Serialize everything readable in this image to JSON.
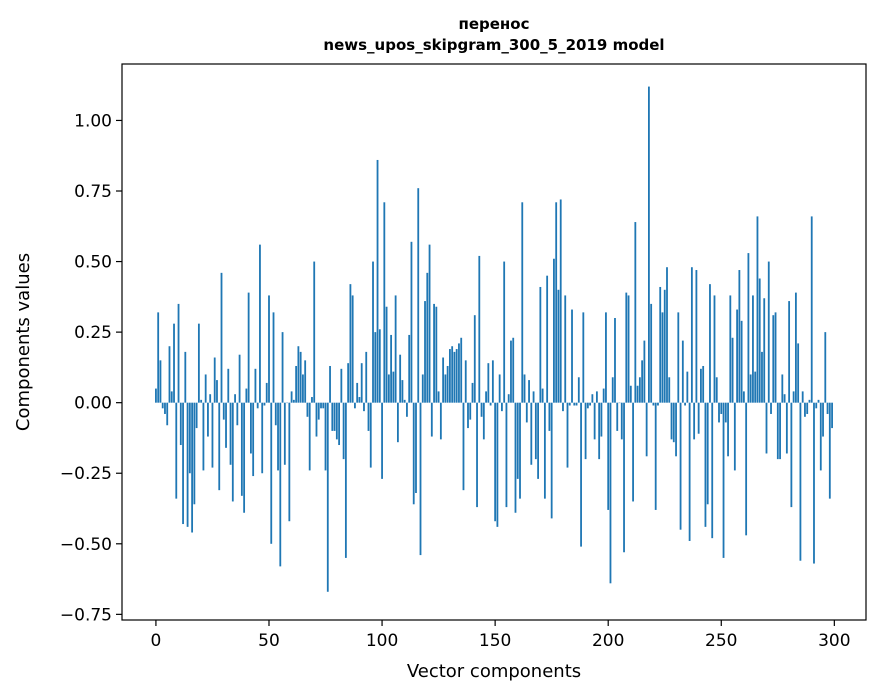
{
  "chart_data": {
    "type": "bar",
    "title": "перенос",
    "subtitle": "news_upos_skipgram_300_5_2019 model",
    "xlabel": "Vector components",
    "ylabel": "Components values",
    "xlim": [
      -15,
      314
    ],
    "ylim": [
      -0.77,
      1.2
    ],
    "xticks": [
      0,
      50,
      100,
      150,
      200,
      250,
      300
    ],
    "yticks": [
      -0.75,
      -0.5,
      -0.25,
      0.0,
      0.25,
      0.5,
      0.75,
      1.0
    ],
    "ytick_labels": [
      "−0.75",
      "−0.50",
      "−0.25",
      "0.00",
      "0.25",
      "0.50",
      "0.75",
      "1.00"
    ],
    "bar_color": "#1f77b4",
    "values": [
      0.05,
      0.32,
      0.15,
      -0.02,
      -0.04,
      -0.08,
      0.2,
      0.04,
      0.28,
      -0.34,
      0.35,
      -0.15,
      -0.43,
      0.18,
      -0.44,
      -0.25,
      -0.46,
      -0.36,
      -0.09,
      0.28,
      0.01,
      -0.24,
      0.1,
      -0.12,
      0.03,
      -0.23,
      0.16,
      0.08,
      -0.31,
      0.46,
      -0.06,
      -0.16,
      0.12,
      -0.22,
      -0.35,
      0.03,
      -0.08,
      0.17,
      -0.33,
      -0.39,
      0.05,
      0.39,
      -0.18,
      -0.26,
      0.12,
      -0.02,
      0.56,
      -0.25,
      -0.01,
      0.07,
      0.38,
      -0.5,
      0.32,
      -0.08,
      -0.24,
      -0.58,
      0.25,
      -0.22,
      0.0,
      -0.42,
      0.04,
      0.01,
      0.13,
      0.2,
      0.18,
      0.1,
      0.15,
      -0.05,
      -0.24,
      0.02,
      0.5,
      -0.12,
      -0.06,
      -0.02,
      -0.02,
      -0.24,
      -0.67,
      0.13,
      -0.1,
      -0.1,
      -0.13,
      -0.15,
      0.12,
      -0.2,
      -0.55,
      0.14,
      0.42,
      0.38,
      -0.02,
      0.07,
      0.02,
      0.14,
      -0.03,
      0.18,
      -0.1,
      -0.23,
      0.5,
      0.25,
      0.86,
      0.26,
      -0.27,
      0.71,
      0.34,
      0.1,
      0.24,
      0.11,
      0.38,
      -0.14,
      0.17,
      0.08,
      0.01,
      -0.05,
      0.24,
      0.57,
      -0.36,
      -0.32,
      0.76,
      -0.54,
      0.1,
      0.36,
      0.46,
      0.56,
      -0.12,
      0.35,
      0.34,
      0.04,
      -0.13,
      0.16,
      0.1,
      0.13,
      0.19,
      0.2,
      0.18,
      0.19,
      0.21,
      0.23,
      -0.31,
      0.15,
      -0.09,
      -0.06,
      0.07,
      0.31,
      -0.37,
      0.52,
      -0.05,
      -0.13,
      0.04,
      0.14,
      -0.01,
      0.15,
      -0.42,
      -0.44,
      0.1,
      -0.03,
      0.5,
      -0.37,
      0.03,
      0.22,
      0.23,
      -0.39,
      -0.27,
      -0.34,
      0.71,
      0.1,
      -0.07,
      0.08,
      -0.22,
      0.04,
      -0.2,
      -0.27,
      0.41,
      0.05,
      -0.34,
      0.45,
      -0.1,
      -0.41,
      0.51,
      0.71,
      0.4,
      0.72,
      -0.03,
      0.38,
      -0.23,
      -0.01,
      0.33,
      -0.01,
      -0.01,
      0.09,
      -0.51,
      0.32,
      -0.2,
      -0.02,
      -0.01,
      0.03,
      -0.13,
      0.04,
      -0.2,
      -0.12,
      0.05,
      0.32,
      -0.38,
      -0.64,
      0.09,
      0.3,
      -0.1,
      0.0,
      -0.13,
      -0.53,
      0.39,
      0.38,
      0.06,
      -0.35,
      0.64,
      0.06,
      0.09,
      0.15,
      0.22,
      -0.19,
      1.12,
      0.35,
      -0.01,
      -0.38,
      -0.01,
      0.41,
      0.32,
      0.4,
      0.48,
      0.09,
      -0.13,
      -0.14,
      -0.19,
      0.32,
      -0.45,
      0.22,
      -0.01,
      0.11,
      -0.49,
      0.48,
      -0.13,
      0.47,
      -0.11,
      0.12,
      0.13,
      -0.44,
      -0.36,
      0.42,
      -0.48,
      0.38,
      0.09,
      -0.07,
      -0.04,
      -0.55,
      -0.07,
      -0.19,
      0.38,
      0.23,
      -0.24,
      0.33,
      0.47,
      0.29,
      0.04,
      -0.47,
      0.53,
      0.1,
      0.38,
      0.11,
      0.66,
      0.44,
      0.18,
      0.37,
      -0.18,
      0.5,
      -0.04,
      0.31,
      0.32,
      -0.2,
      -0.2,
      0.1,
      0.03,
      -0.18,
      0.36,
      -0.37,
      0.04,
      0.39,
      0.21,
      -0.56,
      0.04,
      -0.05,
      -0.04,
      0.01,
      0.66,
      -0.57,
      -0.02,
      0.01,
      -0.24,
      -0.12,
      0.25,
      -0.04,
      -0.34,
      -0.09
    ]
  }
}
